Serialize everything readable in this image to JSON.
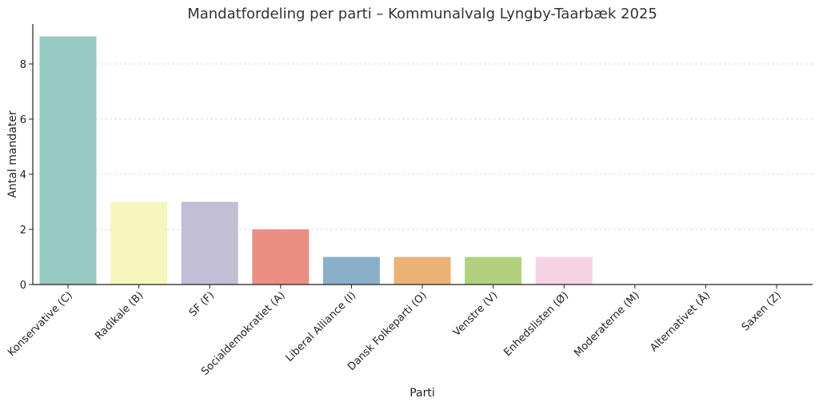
{
  "chart_data": {
    "type": "bar",
    "title": "Mandatfordeling per parti – Kommunalvalg Lyngby-Taarbæk 2025",
    "xlabel": "Parti",
    "ylabel": "Antal mandater",
    "categories": [
      "Konservative (C)",
      "Radikale (B)",
      "SF (F)",
      "Socialdemokratiet (A)",
      "Liberal Alliance (I)",
      "Dansk Folkeparti (O)",
      "Venstre (V)",
      "Enhedslisten (Ø)",
      "Moderaterne (M)",
      "Alternativet (Å)",
      "Saxen (Z)"
    ],
    "values": [
      9,
      3,
      3,
      2,
      1,
      1,
      1,
      1,
      0,
      0,
      0
    ],
    "colors": [
      "#96cac1",
      "#f6f6bc",
      "#c1bed6",
      "#eb8f82",
      "#8aafc8",
      "#eab375",
      "#b1d17f",
      "#f6d3e4",
      "#d9d9d9",
      "#bc82bd",
      "#ccebc5"
    ],
    "yticks": [
      0,
      2,
      4,
      6,
      8
    ],
    "ylim": [
      0,
      9.45
    ],
    "grid": "y"
  }
}
